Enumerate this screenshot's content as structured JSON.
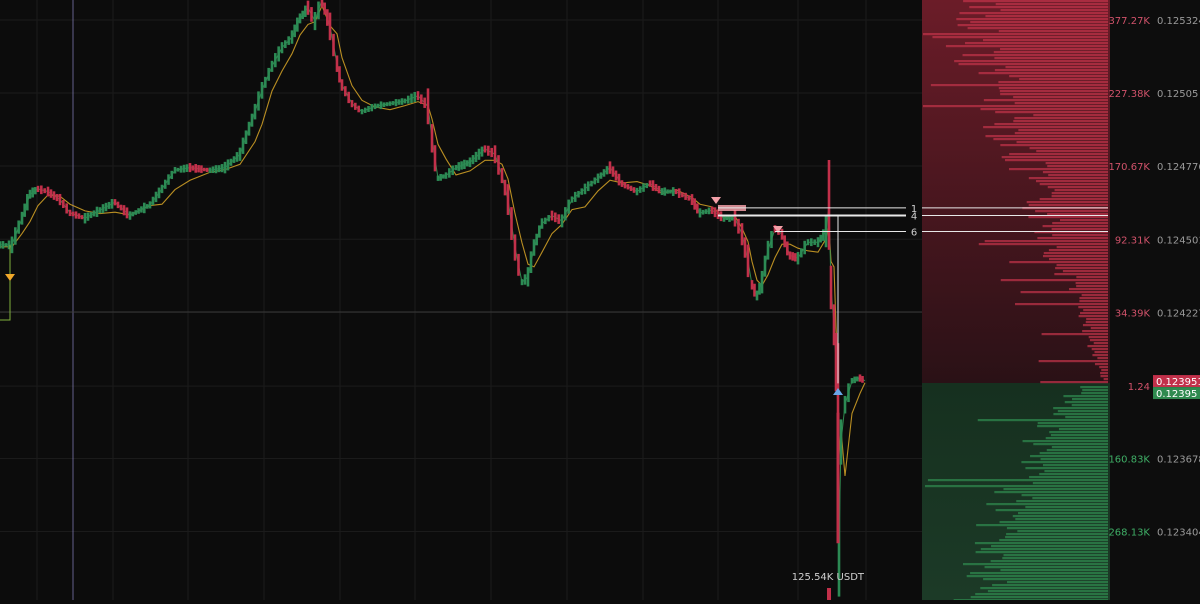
{
  "chart_data": {
    "type": "candlestick",
    "title": "",
    "xlabel": "",
    "ylabel": "",
    "ylim": [
      0.1231,
      0.12545
    ],
    "price_ticks": [
      0.125324,
      0.12505,
      0.124776,
      0.124501,
      0.124227,
      0.123678,
      0.123404
    ],
    "price_tick_labels": [
      "0.125324",
      "0.12505",
      "0.124776",
      "0.124501",
      "0.124227",
      "0.123678",
      "0.123404"
    ],
    "current_price_ask": "0.123951",
    "current_price_bid": "0.12395",
    "volume_marker": "125.54K USDT",
    "depth": {
      "ask_labels": [
        {
          "label": "377.27K",
          "price": 0.125324
        },
        {
          "label": "227.38K",
          "price": 0.12505
        },
        {
          "label": "170.67K",
          "price": 0.124776
        },
        {
          "label": "92.31K",
          "price": 0.124501
        },
        {
          "label": "34.39K",
          "price": 0.124227
        },
        {
          "label": "1.24",
          "price": 0.12395
        }
      ],
      "bid_labels": [
        {
          "label": "160.83K",
          "price": 0.123678
        },
        {
          "label": "268.13K",
          "price": 0.123404
        }
      ]
    },
    "level_lines": [
      {
        "label": "1",
        "price": 0.124619
      },
      {
        "label": "4",
        "price": 0.12459
      },
      {
        "label": "6",
        "price": 0.12453
      }
    ],
    "price_path": [
      [
        0,
        0.12448
      ],
      [
        12,
        0.12448
      ],
      [
        22,
        0.12458
      ],
      [
        30,
        0.12467
      ],
      [
        38,
        0.12469
      ],
      [
        48,
        0.12468
      ],
      [
        60,
        0.12465
      ],
      [
        70,
        0.1246
      ],
      [
        85,
        0.12458
      ],
      [
        100,
        0.12461
      ],
      [
        115,
        0.12464
      ],
      [
        130,
        0.12459
      ],
      [
        150,
        0.12463
      ],
      [
        162,
        0.12469
      ],
      [
        175,
        0.12476
      ],
      [
        190,
        0.12477
      ],
      [
        210,
        0.12476
      ],
      [
        225,
        0.12477
      ],
      [
        240,
        0.12482
      ],
      [
        255,
        0.12498
      ],
      [
        262,
        0.12506
      ],
      [
        272,
        0.12515
      ],
      [
        282,
        0.12522
      ],
      [
        292,
        0.12526
      ],
      [
        300,
        0.12533
      ],
      [
        308,
        0.12537
      ],
      [
        315,
        0.12532
      ],
      [
        322,
        0.1254
      ],
      [
        330,
        0.1253
      ],
      [
        337,
        0.12516
      ],
      [
        342,
        0.12508
      ],
      [
        352,
        0.12501
      ],
      [
        362,
        0.12498
      ],
      [
        375,
        0.125
      ],
      [
        390,
        0.12501
      ],
      [
        405,
        0.12502
      ],
      [
        418,
        0.12504
      ],
      [
        428,
        0.125
      ],
      [
        432,
        0.12488
      ],
      [
        438,
        0.12473
      ],
      [
        446,
        0.12474
      ],
      [
        456,
        0.12477
      ],
      [
        470,
        0.12479
      ],
      [
        485,
        0.12484
      ],
      [
        495,
        0.12482
      ],
      [
        502,
        0.12474
      ],
      [
        508,
        0.12465
      ],
      [
        515,
        0.12447
      ],
      [
        522,
        0.12434
      ],
      [
        528,
        0.12436
      ],
      [
        534,
        0.12447
      ],
      [
        542,
        0.12456
      ],
      [
        552,
        0.12459
      ],
      [
        562,
        0.12457
      ],
      [
        572,
        0.12465
      ],
      [
        585,
        0.12469
      ],
      [
        598,
        0.12473
      ],
      [
        610,
        0.12477
      ],
      [
        622,
        0.12471
      ],
      [
        637,
        0.12468
      ],
      [
        650,
        0.12471
      ],
      [
        662,
        0.12468
      ],
      [
        676,
        0.12468
      ],
      [
        692,
        0.12465
      ],
      [
        700,
        0.1246
      ],
      [
        712,
        0.12461
      ],
      [
        724,
        0.12458
      ],
      [
        735,
        0.12458
      ],
      [
        742,
        0.12452
      ],
      [
        748,
        0.12442
      ],
      [
        752,
        0.12433
      ],
      [
        757,
        0.12429
      ],
      [
        762,
        0.12434
      ],
      [
        768,
        0.12446
      ],
      [
        775,
        0.12454
      ],
      [
        782,
        0.12452
      ],
      [
        790,
        0.12444
      ],
      [
        798,
        0.12443
      ],
      [
        808,
        0.12449
      ],
      [
        818,
        0.12449
      ],
      [
        826,
        0.12453
      ],
      [
        829,
        0.12463
      ],
      [
        831,
        0.12432
      ],
      [
        834,
        0.12418
      ],
      [
        836,
        0.12404
      ],
      [
        838,
        0.12385
      ],
      [
        839,
        0.12336
      ],
      [
        841,
        0.12374
      ],
      [
        845,
        0.12388
      ],
      [
        852,
        0.12397
      ],
      [
        860,
        0.12398
      ],
      [
        865,
        0.12397
      ]
    ]
  }
}
